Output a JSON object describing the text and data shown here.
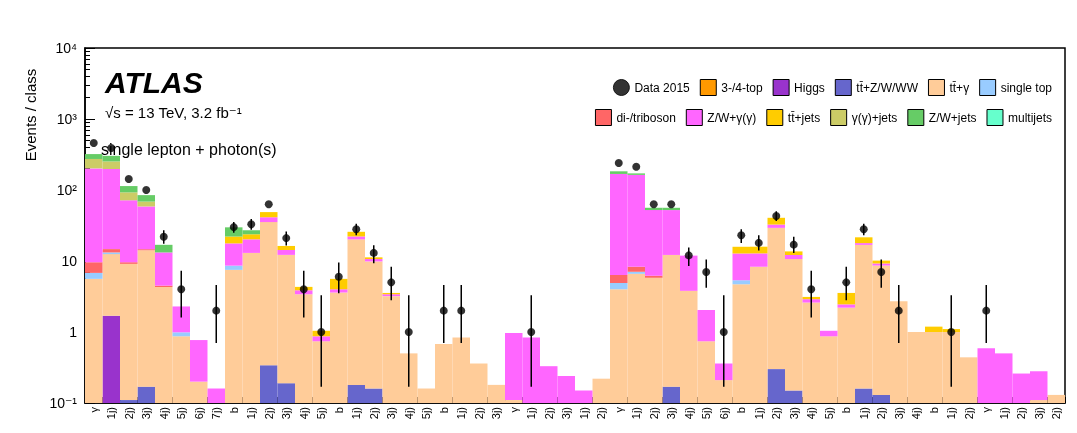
{
  "chart_data": {
    "type": "bar",
    "stacked": true,
    "log": true,
    "title": "ATLAS",
    "subtitle": "√s = 13 TeV, 3.2 fb⁻¹",
    "annotations": [
      "single lepton + photon(s)"
    ],
    "ylabel": "Events / class",
    "ylim": [
      0.1,
      10000
    ],
    "yticks": [
      {
        "value": 0.1,
        "label": "10⁻¹"
      },
      1,
      10,
      {
        "value": 100,
        "label": "10²"
      },
      {
        "value": 1000,
        "label": "10³"
      },
      {
        "value": 10000,
        "label": "10⁴"
      }
    ],
    "grid": false,
    "legend": "top right",
    "categories": [
      "γ",
      "1j)",
      "2j)",
      "3j)",
      "4j)",
      "5j)",
      "6j)",
      "7j)",
      "b",
      "1j)",
      "2j)",
      "3j)",
      "4j)",
      "5j)",
      "b",
      "1j)",
      "2j)",
      "3j)",
      "4j)",
      "5j)",
      "b",
      "1j)",
      "2j)",
      "3j)",
      "γ",
      "1j)",
      "2j)",
      "3j)",
      "1j)",
      "2j)",
      "γ",
      "1j)",
      "2j)",
      "3j)",
      "4j)",
      "5j)",
      "6j)",
      "b",
      "1j)",
      "2j)",
      "3j)",
      "4j)",
      "5j)",
      "b",
      "1j)",
      "2j)",
      "3j)",
      "4j)",
      "b",
      "1j)",
      "2j)",
      "γ",
      "1j)",
      "2j)",
      "3j)",
      "2j)"
    ],
    "series": [
      {
        "name": "Data 2015",
        "type": "scatter",
        "marker": "circle",
        "color": "#000000",
        "values": [
          460,
          390,
          143,
          100,
          22,
          4,
          null,
          2,
          30,
          33,
          63,
          21,
          4,
          1,
          6,
          28,
          13,
          5,
          1,
          null,
          2,
          2,
          null,
          null,
          null,
          1,
          null,
          null,
          null,
          null,
          240,
          212,
          63,
          63,
          12,
          7,
          1,
          23,
          18,
          43,
          17,
          4,
          null,
          5,
          28,
          7,
          2,
          null,
          null,
          1,
          null,
          2,
          null,
          null,
          null,
          null
        ],
        "errors": [
          null,
          null,
          null,
          null,
          [
            17.5,
            27
          ],
          [
            1.6,
            7.3
          ],
          null,
          [
            0.7,
            4.6
          ],
          [
            25,
            35.5
          ],
          [
            27.5,
            39
          ],
          null,
          [
            16.5,
            26
          ],
          [
            1.6,
            7.3
          ],
          [
            0.17,
            3.3
          ],
          [
            3.5,
            9.5
          ],
          [
            23,
            33.5
          ],
          [
            9.3,
            16.7
          ],
          [
            2.8,
            8.3
          ],
          [
            0.17,
            3.3
          ],
          null,
          [
            0.7,
            4.6
          ],
          [
            0.7,
            4.6
          ],
          null,
          null,
          null,
          [
            0.17,
            3.3
          ],
          null,
          null,
          null,
          null,
          null,
          null,
          null,
          null,
          [
            8.5,
            15.5
          ],
          [
            4.2,
            10.5
          ],
          [
            0.17,
            3.3
          ],
          [
            18,
            28
          ],
          [
            14,
            23
          ],
          [
            36.5,
            50
          ],
          [
            13,
            22
          ],
          [
            1.6,
            7.3
          ],
          null,
          [
            2.8,
            8.3
          ],
          [
            23,
            33.5
          ],
          [
            4.2,
            10.5
          ],
          [
            0.7,
            4.6
          ],
          null,
          null,
          [
            0.17,
            3.3
          ],
          null,
          [
            0.7,
            4.6
          ],
          null,
          null,
          null,
          null
        ]
      },
      {
        "name": "3-/4-top",
        "color": "#ff9900",
        "values": [
          null,
          null,
          null,
          null,
          null,
          null,
          null,
          null,
          null,
          null,
          null,
          null,
          null,
          null,
          null,
          null,
          null,
          null,
          null,
          null,
          null,
          null,
          null,
          null,
          null,
          null,
          null,
          null,
          null,
          null,
          null,
          null,
          null,
          null,
          null,
          null,
          null,
          null,
          null,
          null,
          null,
          null,
          null,
          null,
          null,
          null,
          null,
          null,
          null,
          null,
          null,
          null,
          null,
          null,
          null,
          null
        ]
      },
      {
        "name": "Higgs",
        "color": "#9933cc",
        "values": [
          null,
          1.7,
          null,
          null,
          null,
          null,
          null,
          null,
          null,
          null,
          null,
          null,
          null,
          null,
          null,
          null,
          null,
          null,
          null,
          null,
          null,
          null,
          null,
          null,
          null,
          null,
          null,
          null,
          null,
          null,
          null,
          null,
          null,
          null,
          null,
          null,
          null,
          null,
          null,
          null,
          null,
          null,
          null,
          null,
          null,
          null,
          null,
          null,
          null,
          null,
          null,
          null,
          null,
          null,
          null,
          null
        ]
      },
      {
        "name": "tt̄+Z/W/WW",
        "color": "#6666cc",
        "values": [
          null,
          null,
          0.11,
          0.17,
          null,
          null,
          null,
          null,
          null,
          null,
          0.34,
          0.19,
          null,
          null,
          null,
          0.18,
          0.16,
          null,
          null,
          null,
          null,
          null,
          null,
          null,
          null,
          null,
          null,
          null,
          null,
          null,
          null,
          null,
          null,
          0.17,
          null,
          null,
          null,
          null,
          null,
          0.3,
          0.15,
          null,
          null,
          null,
          0.16,
          0.13,
          null,
          null,
          null,
          null,
          null,
          null,
          null,
          null,
          null,
          null
        ]
      },
      {
        "name": "tt̄+γ",
        "color": "#ffcc99",
        "values": [
          5.6,
          10.8,
          9.0,
          14,
          4.3,
          0.87,
          0.2,
          null,
          7.5,
          13,
          35,
          12,
          3.4,
          0.74,
          3.6,
          20,
          9.7,
          3.2,
          0.5,
          0.16,
          0.68,
          0.84,
          0.36,
          0.18,
          0.11,
          null,
          null,
          null,
          null,
          0.22,
          4.0,
          6.6,
          5.8,
          12,
          3.8,
          0.74,
          0.21,
          4.7,
          8.3,
          29,
          10.5,
          2.6,
          0.87,
          2.2,
          16.7,
          8.5,
          2.7,
          1.0,
          1.0,
          1.0,
          0.44,
          null,
          null,
          null,
          0.11,
          0.13
        ]
      },
      {
        "name": "single top",
        "color": "#99ccff",
        "values": [
          1.2,
          0.7,
          null,
          null,
          null,
          0.12,
          null,
          null,
          1.1,
          null,
          null,
          null,
          null,
          null,
          null,
          null,
          null,
          null,
          null,
          null,
          null,
          null,
          null,
          null,
          null,
          null,
          null,
          null,
          null,
          null,
          0.9,
          0.45,
          null,
          null,
          null,
          null,
          null,
          0.66,
          null,
          null,
          null,
          null,
          null,
          null,
          null,
          null,
          null,
          null,
          null,
          null,
          null,
          null,
          null,
          null,
          null,
          null
        ]
      },
      {
        "name": "di-/triboson",
        "color": "#ff6666",
        "values": [
          2.8,
          1.5,
          0.5,
          0.5,
          0.2,
          null,
          null,
          null,
          null,
          null,
          null,
          null,
          null,
          null,
          null,
          null,
          null,
          null,
          null,
          null,
          null,
          null,
          null,
          null,
          null,
          null,
          null,
          null,
          null,
          null,
          1.45,
          1.25,
          0.4,
          null,
          null,
          null,
          null,
          null,
          null,
          null,
          null,
          null,
          null,
          null,
          null,
          null,
          null,
          null,
          null,
          null,
          null,
          null,
          null,
          null,
          null,
          null
        ]
      },
      {
        "name": "Z/W+γ(γ)",
        "color": "#ff66ff",
        "values": [
          192,
          183,
          62,
          44,
          8.7,
          1.3,
          0.57,
          0.16,
          9.1,
          7.2,
          6,
          2.1,
          0.47,
          0.13,
          0.4,
          2,
          0.8,
          0.2,
          null,
          null,
          null,
          null,
          null,
          null,
          0.86,
          0.84,
          0.33,
          0.24,
          0.15,
          null,
          162,
          155,
          46,
          40,
          8.1,
          1.3,
          0.15,
          7.4,
          4.5,
          3.3,
          1.5,
          0.3,
          0.17,
          0.25,
          1,
          0.6,
          null,
          null,
          null,
          null,
          null,
          0.59,
          0.5,
          0.26,
          0.17,
          null
        ]
      },
      {
        "name": "tt̄+jets",
        "color": "#ffcc00",
        "values": [
          null,
          null,
          null,
          null,
          null,
          null,
          null,
          null,
          4.4,
          3.6,
          7.5,
          2.0,
          0.45,
          0.17,
          1.6,
          3.6,
          0.6,
          0.15,
          null,
          null,
          null,
          null,
          null,
          null,
          null,
          null,
          null,
          null,
          null,
          null,
          null,
          null,
          null,
          null,
          null,
          null,
          null,
          3.1,
          3.1,
          8,
          1.5,
          0.22,
          null,
          1.1,
          3.7,
          0.9,
          null,
          null,
          0.19,
          0.1,
          null,
          null,
          null,
          null,
          null,
          null
        ]
      },
      {
        "name": "γ(γ)+jets",
        "color": "#cccc66",
        "values": [
          72,
          55,
          21,
          10,
          null,
          null,
          null,
          null,
          null,
          null,
          null,
          null,
          null,
          null,
          null,
          null,
          null,
          null,
          null,
          null,
          null,
          null,
          null,
          null,
          null,
          null,
          null,
          null,
          null,
          null,
          null,
          null,
          null,
          null,
          null,
          null,
          null,
          null,
          null,
          null,
          null,
          null,
          null,
          null,
          null,
          null,
          null,
          null,
          null,
          null,
          null,
          null,
          null,
          null,
          null,
          null
        ]
      },
      {
        "name": "Z/W+jets",
        "color": "#66cc66",
        "values": [
          47,
          50,
          21,
          16,
          3.7,
          null,
          null,
          null,
          7.7,
          3.3,
          null,
          null,
          null,
          null,
          null,
          null,
          null,
          null,
          null,
          null,
          null,
          null,
          null,
          null,
          null,
          null,
          null,
          null,
          null,
          null,
          15,
          8,
          4,
          4,
          null,
          null,
          null,
          null,
          null,
          null,
          null,
          null,
          null,
          null,
          null,
          null,
          null,
          null,
          null,
          null,
          null,
          null,
          null,
          null,
          null,
          null
        ]
      },
      {
        "name": "multijets",
        "color": "#66ffcc",
        "values": [
          null,
          null,
          null,
          null,
          null,
          null,
          null,
          null,
          null,
          null,
          null,
          null,
          null,
          null,
          null,
          null,
          null,
          null,
          null,
          null,
          null,
          null,
          null,
          null,
          null,
          null,
          null,
          null,
          null,
          null,
          null,
          null,
          null,
          null,
          null,
          null,
          null,
          null,
          null,
          null,
          null,
          null,
          null,
          null,
          null,
          null,
          null,
          null,
          null,
          null,
          null,
          null,
          null,
          null,
          null,
          null
        ]
      }
    ]
  }
}
